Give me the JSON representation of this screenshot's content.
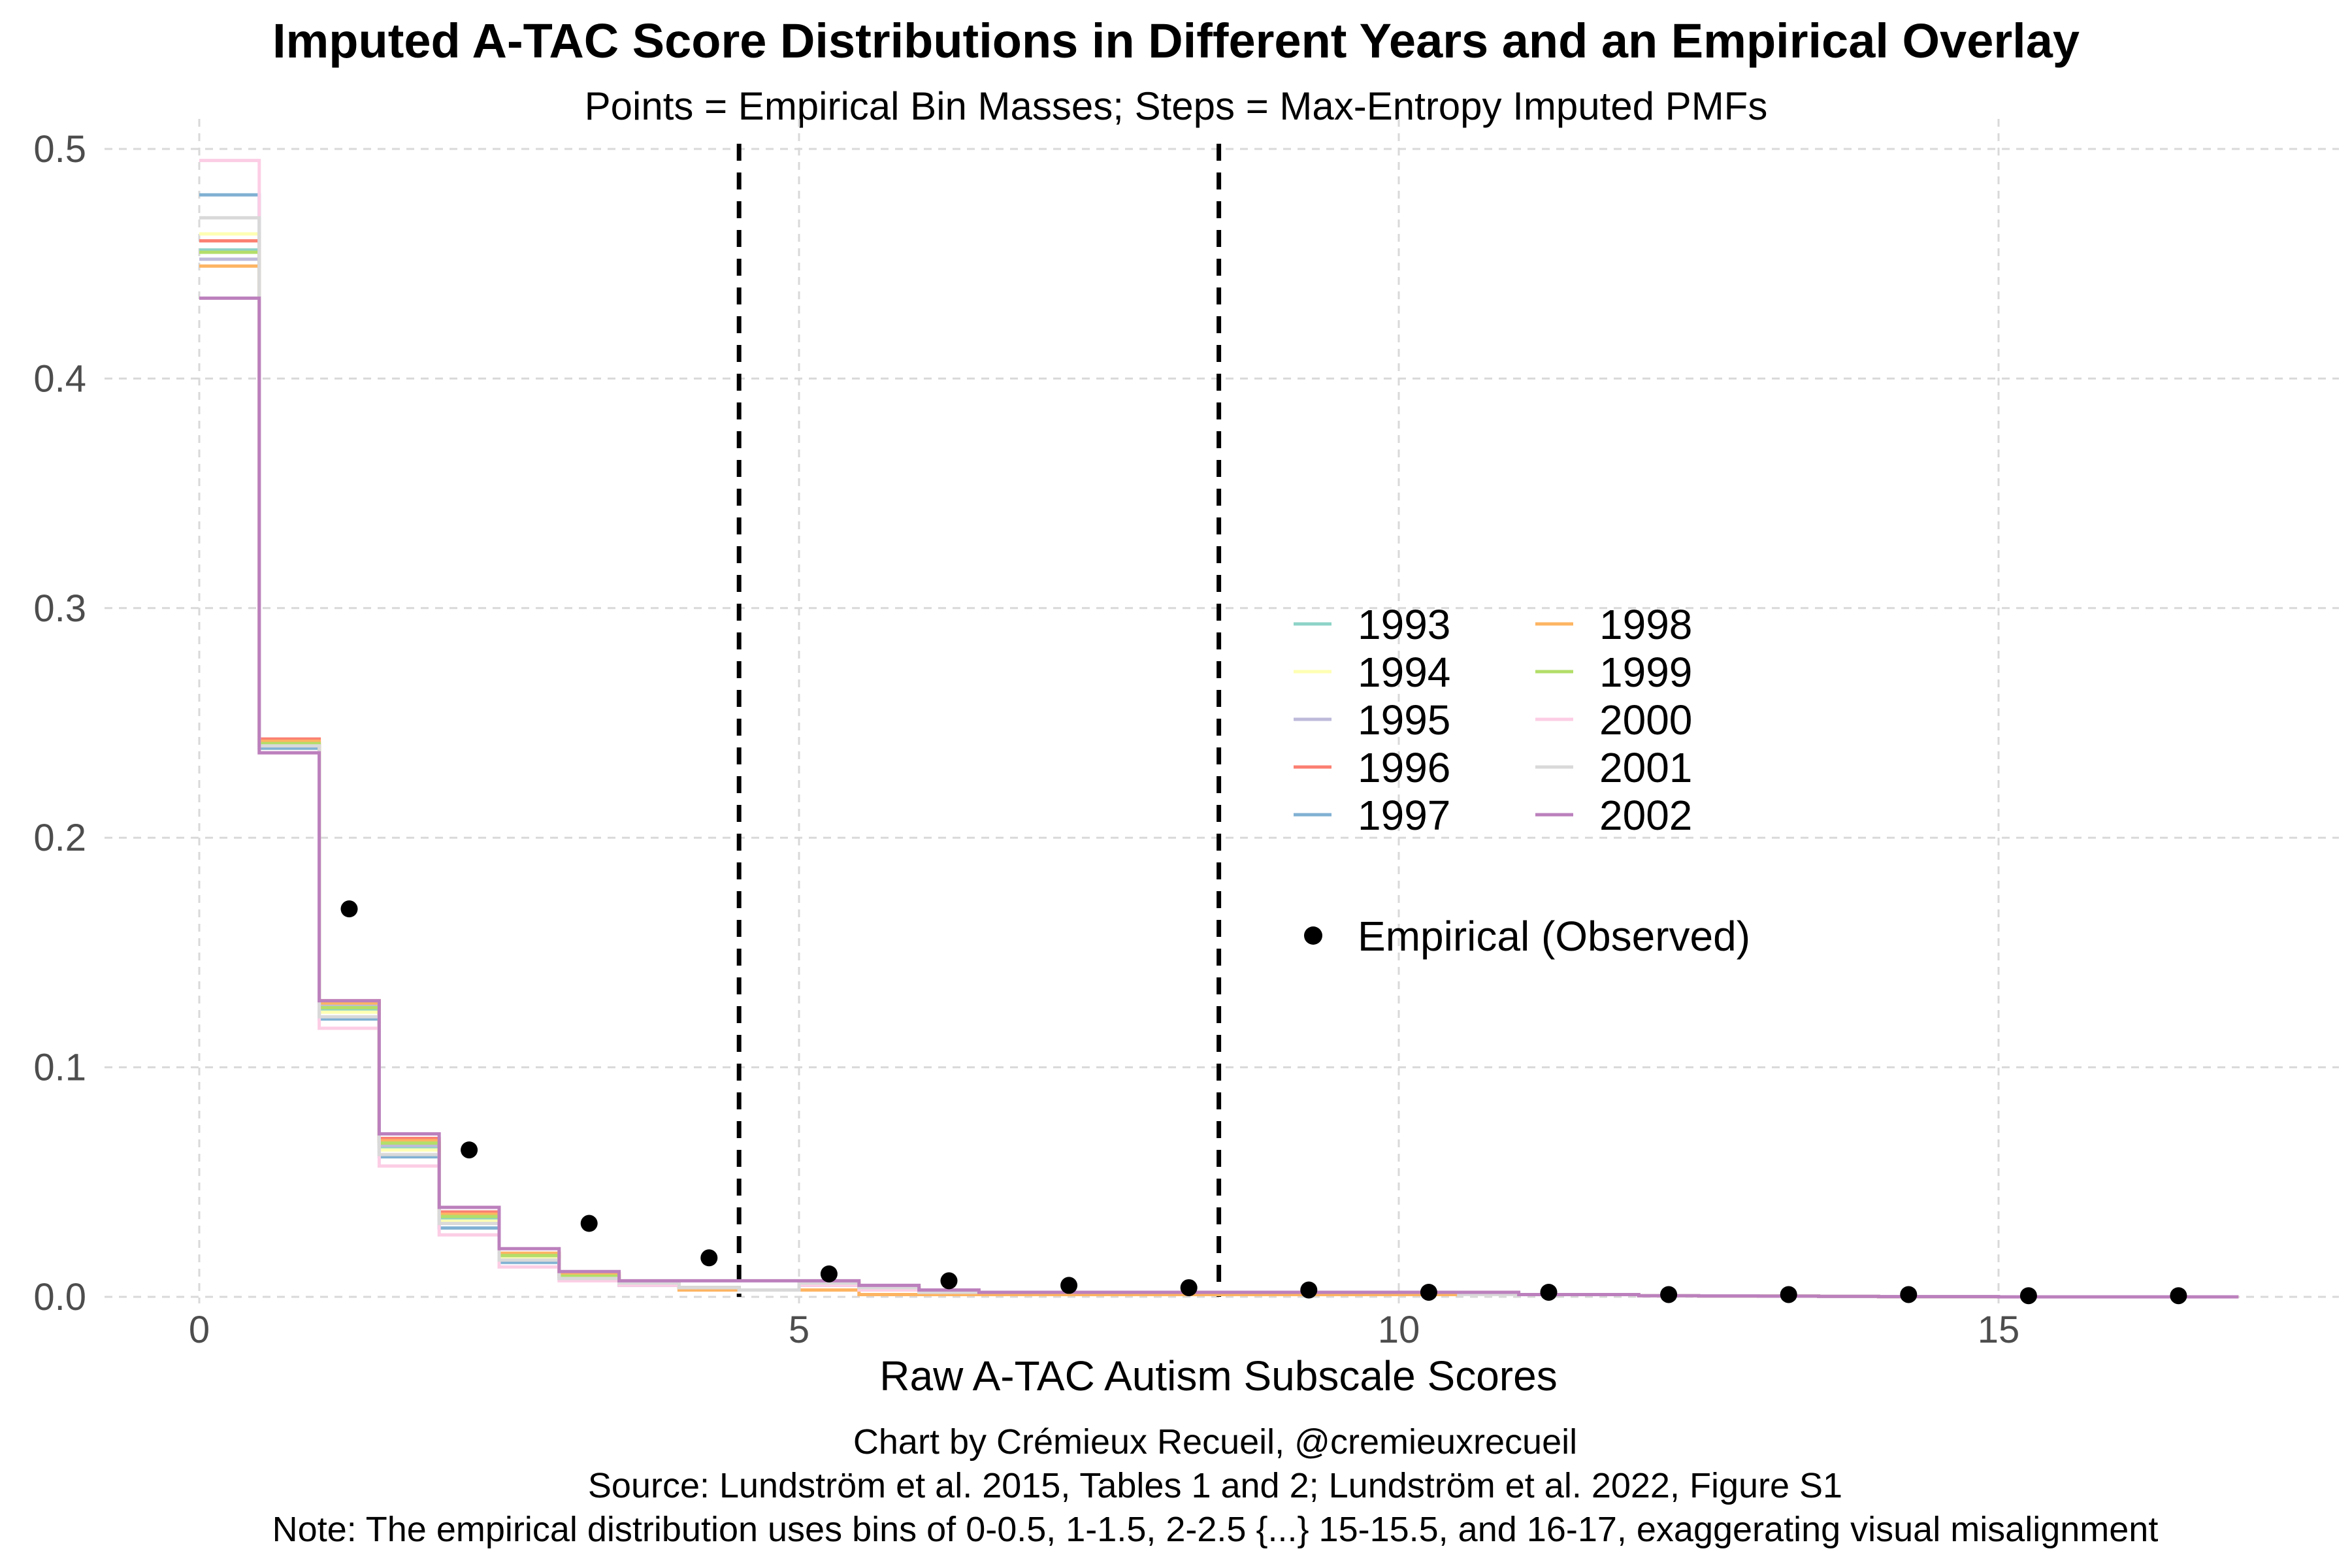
{
  "chart_data": {
    "type": "line",
    "title": "Imputed A-TAC Score Distributions in Different Years and an Empirical Overlay",
    "subtitle": "Points = Empirical Bin Masses; Steps = Max-Entropy Imputed PMFs",
    "xlabel": "Raw A-TAC Autism Subscale Scores",
    "ylabel": "",
    "xlim": [
      -0.5,
      17.5
    ],
    "ylim": [
      0,
      0.5
    ],
    "x_ticks": [
      "0",
      "5",
      "10",
      "15"
    ],
    "y_ticks": [
      "0.0",
      "0.1",
      "0.2",
      "0.3",
      "0.4",
      "0.5"
    ],
    "grid": true,
    "vertical_reference_lines": [
      4.5,
      8.5
    ],
    "step_x": [
      0,
      0.5,
      1,
      1.5,
      2,
      2.5,
      3,
      3.5,
      4,
      4.5,
      5,
      5.5,
      6,
      6.5,
      7,
      7.5,
      8,
      8.5,
      9,
      9.5,
      10,
      10.5,
      11,
      11.5,
      12,
      12.5,
      13,
      13.5,
      14,
      14.5,
      15,
      15.5,
      16,
      16.5,
      17
    ],
    "series": [
      {
        "name": "1993",
        "color": "#8DD3C7",
        "values": [
          0.456,
          0.24,
          0.125,
          0.065,
          0.034,
          0.017,
          0.009,
          0.006,
          0.004,
          0.003,
          0.006,
          0.004,
          0.002,
          0.002,
          0.002,
          0.002,
          0.002,
          0.002,
          0.002,
          0.002,
          0.002,
          0.001,
          0.001,
          0.001,
          0.0005,
          0.0004,
          0.0003,
          0.0002,
          0.0001,
          0.0001,
          0,
          0,
          0,
          0
        ]
      },
      {
        "name": "1994",
        "color": "#FFFFB3",
        "values": [
          0.463,
          0.239,
          0.124,
          0.064,
          0.033,
          0.017,
          0.009,
          0.006,
          0.004,
          0.003,
          0.006,
          0.004,
          0.002,
          0.002,
          0.002,
          0.002,
          0.002,
          0.002,
          0.002,
          0.002,
          0.002,
          0.001,
          0.001,
          0.001,
          0.0005,
          0.0004,
          0.0003,
          0.0002,
          0.0001,
          0.0001,
          0,
          0,
          0,
          0
        ]
      },
      {
        "name": "1995",
        "color": "#BEBADA",
        "values": [
          0.452,
          0.241,
          0.127,
          0.066,
          0.035,
          0.018,
          0.009,
          0.006,
          0.004,
          0.003,
          0.006,
          0.004,
          0.002,
          0.002,
          0.002,
          0.002,
          0.002,
          0.002,
          0.002,
          0.002,
          0.002,
          0.001,
          0.001,
          0.001,
          0.0005,
          0.0004,
          0.0003,
          0.0002,
          0.0001,
          0.0001,
          0,
          0,
          0,
          0
        ]
      },
      {
        "name": "1996",
        "color": "#FB8072",
        "values": [
          0.46,
          0.243,
          0.129,
          0.069,
          0.037,
          0.019,
          0.01,
          0.006,
          0.004,
          0.003,
          0.006,
          0.004,
          0.002,
          0.002,
          0.002,
          0.002,
          0.002,
          0.002,
          0.002,
          0.002,
          0.002,
          0.001,
          0.001,
          0.001,
          0.0005,
          0.0004,
          0.0003,
          0.0002,
          0.0001,
          0.0001,
          0,
          0,
          0,
          0
        ]
      },
      {
        "name": "1997",
        "color": "#80B1D3",
        "values": [
          0.48,
          0.239,
          0.121,
          0.061,
          0.03,
          0.015,
          0.008,
          0.005,
          0.004,
          0.003,
          0.005,
          0.004,
          0.002,
          0.002,
          0.002,
          0.002,
          0.002,
          0.002,
          0.002,
          0.002,
          0.002,
          0.001,
          0.001,
          0.001,
          0.0005,
          0.0004,
          0.0003,
          0.0002,
          0.0001,
          0.0001,
          0,
          0,
          0,
          0
        ]
      },
      {
        "name": "1998",
        "color": "#FDB462",
        "values": [
          0.449,
          0.242,
          0.128,
          0.068,
          0.036,
          0.019,
          0.01,
          0.006,
          0.003,
          0.003,
          0.003,
          0.001,
          0.001,
          0.001,
          0.001,
          0.001,
          0.001,
          0.001,
          0.001,
          0.001,
          0.001,
          0.001,
          0.001,
          0.001,
          0.0005,
          0.0004,
          0.0003,
          0.0002,
          0.0001,
          0.0001,
          0,
          0,
          0,
          0
        ]
      },
      {
        "name": "1999",
        "color": "#B3DE69",
        "values": [
          0.455,
          0.241,
          0.126,
          0.067,
          0.035,
          0.018,
          0.009,
          0.006,
          0.004,
          0.003,
          0.006,
          0.004,
          0.002,
          0.002,
          0.002,
          0.002,
          0.002,
          0.002,
          0.002,
          0.002,
          0.002,
          0.001,
          0.001,
          0.001,
          0.0005,
          0.0004,
          0.0003,
          0.0002,
          0.0001,
          0.0001,
          0,
          0,
          0,
          0
        ]
      },
      {
        "name": "2000",
        "color": "#FCCDE5",
        "values": [
          0.495,
          0.237,
          0.117,
          0.057,
          0.027,
          0.013,
          0.007,
          0.005,
          0.004,
          0.003,
          0.005,
          0.003,
          0.002,
          0.002,
          0.002,
          0.002,
          0.002,
          0.002,
          0.002,
          0.002,
          0.002,
          0.001,
          0.001,
          0.001,
          0.0005,
          0.0004,
          0.0003,
          0.0002,
          0.0001,
          0.0001,
          0,
          0,
          0,
          0
        ]
      },
      {
        "name": "2001",
        "color": "#D9D9D9",
        "values": [
          0.47,
          0.24,
          0.122,
          0.062,
          0.032,
          0.016,
          0.008,
          0.006,
          0.004,
          0.003,
          0.006,
          0.004,
          0.002,
          0.002,
          0.002,
          0.002,
          0.002,
          0.002,
          0.002,
          0.002,
          0.002,
          0.001,
          0.001,
          0.001,
          0.0005,
          0.0004,
          0.0003,
          0.0002,
          0.0001,
          0.0001,
          0,
          0,
          0,
          0
        ]
      },
      {
        "name": "2002",
        "color": "#BC80BD",
        "values": [
          0.435,
          0.237,
          0.129,
          0.071,
          0.039,
          0.021,
          0.011,
          0.007,
          0.007,
          0.007,
          0.007,
          0.005,
          0.003,
          0.002,
          0.002,
          0.002,
          0.002,
          0.002,
          0.002,
          0.002,
          0.002,
          0.002,
          0.001,
          0.001,
          0.0005,
          0.0004,
          0.0003,
          0.0002,
          0.0001,
          0.0001,
          0,
          0,
          0,
          0
        ]
      }
    ],
    "empirical": {
      "name": "Empirical (Observed)",
      "color": "#000000",
      "x": [
        1.25,
        2.25,
        3.25,
        4.25,
        5.25,
        6.25,
        7.25,
        8.25,
        9.25,
        10.25,
        11.25,
        12.25,
        13.25,
        14.25,
        15.25,
        16.5
      ],
      "y": [
        0.169,
        0.064,
        0.032,
        0.017,
        0.01,
        0.007,
        0.005,
        0.004,
        0.003,
        0.002,
        0.002,
        0.001,
        0.001,
        0.001,
        0.0005,
        0.0005
      ]
    },
    "legend_position": "center-right"
  },
  "caption": {
    "line1": "Chart by Crémieux Recueil, @cremieuxrecueil",
    "line2": "Source: Lundström et al. 2015, Tables 1 and 2; Lundström et al. 2022, Figure S1",
    "line3": "Note: The empirical distribution uses bins of 0-0.5, 1-1.5, 2-2.5 {...} 15-15.5, and 16-17, exaggerating visual misalignment"
  }
}
